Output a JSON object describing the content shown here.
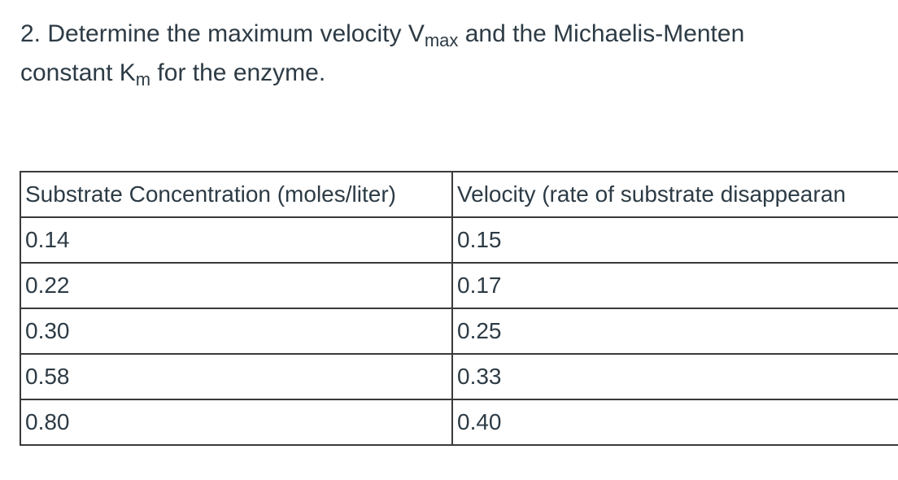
{
  "question": {
    "line1_prefix": "2. Determine the maximum velocity V",
    "vmax_sub": "max",
    "line1_suffix": " and the Michaelis-Menten",
    "line2_prefix": "constant K",
    "km_sub": "m",
    "line2_suffix": " for the enzyme."
  },
  "table": {
    "headers": [
      "Substrate Concentration (moles/liter)",
      "Velocity (rate of substrate disappearan"
    ],
    "rows": [
      [
        "0.14",
        "0.15"
      ],
      [
        "0.22",
        "0.17"
      ],
      [
        "0.30",
        "0.25"
      ],
      [
        "0.58",
        "0.33"
      ],
      [
        "0.80",
        "0.40"
      ]
    ]
  }
}
